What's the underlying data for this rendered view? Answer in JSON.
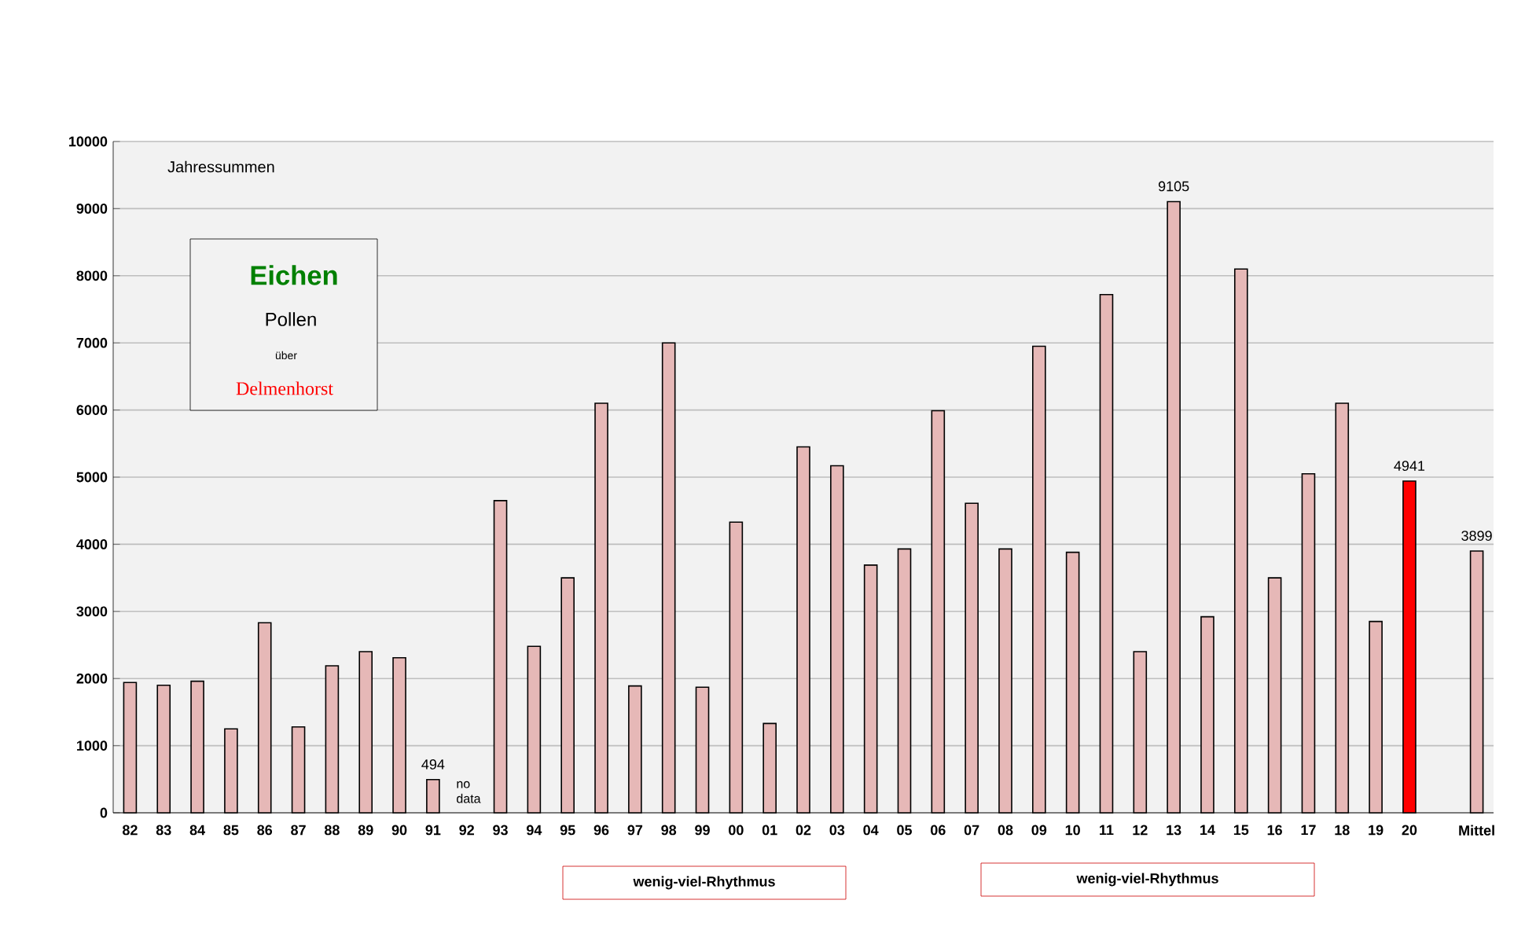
{
  "chart_data": {
    "type": "bar",
    "categories": [
      "82",
      "83",
      "84",
      "85",
      "86",
      "87",
      "88",
      "89",
      "90",
      "91",
      "92",
      "93",
      "94",
      "95",
      "96",
      "97",
      "98",
      "99",
      "00",
      "01",
      "02",
      "03",
      "04",
      "05",
      "06",
      "07",
      "08",
      "09",
      "10",
      "11",
      "12",
      "13",
      "14",
      "15",
      "16",
      "17",
      "18",
      "19",
      "20",
      null,
      "Mittel"
    ],
    "values": [
      1940,
      1900,
      1960,
      1250,
      2830,
      1280,
      2190,
      2400,
      2310,
      494,
      null,
      4650,
      2480,
      3500,
      6100,
      1890,
      7000,
      1870,
      4330,
      1330,
      5450,
      5170,
      3690,
      3930,
      5990,
      4610,
      3930,
      6950,
      3880,
      7720,
      2400,
      9105,
      2920,
      8100,
      3500,
      5050,
      6100,
      2850,
      4941,
      null,
      3899
    ],
    "colors": [
      "#e6b8b7",
      "#e6b8b7",
      "#e6b8b7",
      "#e6b8b7",
      "#e6b8b7",
      "#e6b8b7",
      "#e6b8b7",
      "#e6b8b7",
      "#e6b8b7",
      "#e6b8b7",
      "#e6b8b7",
      "#e6b8b7",
      "#e6b8b7",
      "#e6b8b7",
      "#e6b8b7",
      "#e6b8b7",
      "#e6b8b7",
      "#e6b8b7",
      "#e6b8b7",
      "#e6b8b7",
      "#e6b8b7",
      "#e6b8b7",
      "#e6b8b7",
      "#e6b8b7",
      "#e6b8b7",
      "#e6b8b7",
      "#e6b8b7",
      "#e6b8b7",
      "#e6b8b7",
      "#e6b8b7",
      "#e6b8b7",
      "#e6b8b7",
      "#e6b8b7",
      "#e6b8b7",
      "#e6b8b7",
      "#e6b8b7",
      "#e6b8b7",
      "#e6b8b7",
      "#ff0000",
      "#e6b8b7",
      "#e6b8b7"
    ],
    "value_labels": [
      null,
      null,
      null,
      null,
      null,
      null,
      null,
      null,
      null,
      "494",
      null,
      null,
      null,
      null,
      null,
      null,
      null,
      null,
      null,
      null,
      null,
      null,
      null,
      null,
      null,
      null,
      null,
      null,
      null,
      null,
      null,
      "9105",
      null,
      null,
      null,
      null,
      null,
      null,
      "4941",
      null,
      "3899"
    ],
    "ylim": [
      0,
      10000
    ],
    "yticks": [
      0,
      1000,
      2000,
      3000,
      4000,
      5000,
      6000,
      7000,
      8000,
      9000,
      10000
    ],
    "grid": "y",
    "annotations": [
      "Jahressummen",
      "Eichen",
      "Pollen",
      "über",
      "Delmenhorst",
      "no data",
      "wenig-viel-Rhythmus",
      "wenig-viel-Rhythmus"
    ]
  }
}
